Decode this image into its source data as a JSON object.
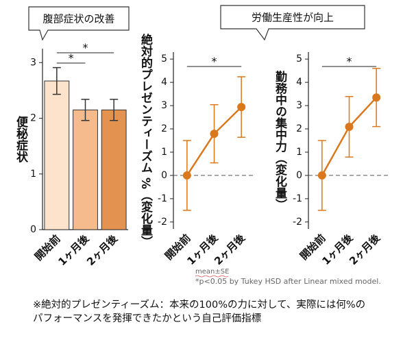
{
  "chart_data": [
    {
      "type": "bar",
      "ylabel": "便秘症状",
      "categories": [
        "開始前",
        "1ヶ月後",
        "2ヶ月後"
      ],
      "values": [
        2.67,
        2.15,
        2.15
      ],
      "errors": [
        0.24,
        0.19,
        0.19
      ],
      "colors": [
        "#fde3cc",
        "#f5bb8c",
        "#e3934f"
      ],
      "ylim": [
        0,
        3.25
      ],
      "yticks": [
        0,
        1,
        2,
        3
      ],
      "annotations": [
        {
          "text": "*",
          "from": "開始前",
          "to": "1ヶ月後"
        },
        {
          "text": "*",
          "from": "開始前",
          "to": "2ヶ月後"
        }
      ]
    },
    {
      "type": "line",
      "ylabel": "絶対的プレゼンティーズム %（変化量）",
      "categories": [
        "開始前",
        "1ヶ月後",
        "2ヶ月後"
      ],
      "values": [
        0,
        1.79,
        2.94
      ],
      "errors": [
        1.5,
        1.25,
        1.3
      ],
      "color": "#d9781c",
      "zero_line": true,
      "ylim": [
        -2.3,
        5.3
      ],
      "yticks": [
        -2,
        -1,
        0,
        1,
        2,
        3,
        4,
        5
      ],
      "annotations": [
        {
          "text": "*",
          "from": "開始前",
          "to": "2ヶ月後"
        }
      ]
    },
    {
      "type": "line",
      "ylabel": "勤務中の集中力（変化量）",
      "categories": [
        "開始前",
        "1ヶ月後",
        "2ヶ月後"
      ],
      "values": [
        0,
        2.09,
        3.35
      ],
      "errors": [
        1.5,
        1.3,
        1.25
      ],
      "color": "#d9781c",
      "zero_line": true,
      "ylim": [
        -2.3,
        5.3
      ],
      "yticks": [
        -2,
        -1,
        0,
        1,
        2,
        3,
        4,
        5
      ],
      "annotations": [
        {
          "text": "*",
          "from": "開始前",
          "to": "2ヶ月後"
        }
      ]
    }
  ],
  "callouts": [
    "腹部症状の改善",
    "労働生産性が向上"
  ],
  "footnotes": {
    "stat": "mean±SE",
    "test": "*p<0.05 by  Tukey HSD after Linear mixed model.",
    "note": [
      "※絶対的プレゼンティーズム：本来の100%の力に対して、実際には何%の",
      "パフォーマンスを発揮できたかという自己評価指標"
    ]
  }
}
